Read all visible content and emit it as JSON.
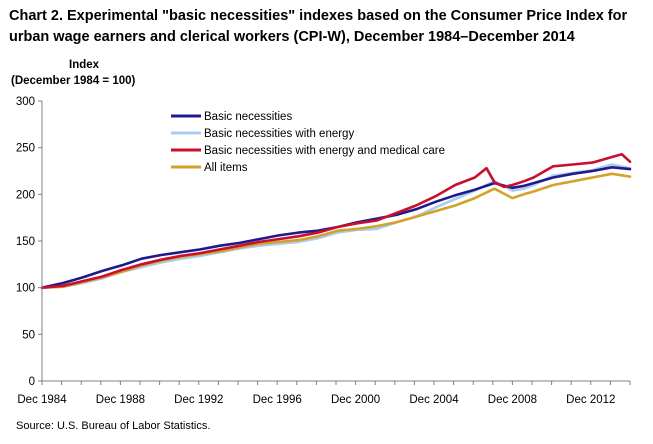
{
  "chart_data": {
    "type": "line",
    "title": "Chart 2. Experimental  \"basic necessities\" indexes based on the Consumer Price Index for urban wage earners and clerical workers (CPI-W), December 1984–December 2014",
    "ylabel_line1": "Index",
    "ylabel_line2": "(December 1984 = 100)",
    "xlabel": "",
    "ylim": [
      0,
      300
    ],
    "yticks": [
      0,
      50,
      100,
      150,
      200,
      250,
      300
    ],
    "xlim": [
      1984.92,
      2014.92
    ],
    "xticks": [
      {
        "label": "Dec 1984",
        "x": 1984.92
      },
      {
        "label": "Dec 1988",
        "x": 1988.92
      },
      {
        "label": "Dec 1992",
        "x": 1992.92
      },
      {
        "label": "Dec 1996",
        "x": 1996.92
      },
      {
        "label": "Dec 2000",
        "x": 2000.92
      },
      {
        "label": "Dec 2004",
        "x": 2004.92
      },
      {
        "label": "Dec 2008",
        "x": 2008.92
      },
      {
        "label": "Dec 2012",
        "x": 2012.92
      }
    ],
    "grid": false,
    "legend_position": "top-left",
    "series": [
      {
        "name": "Basic necessities",
        "color": "#1f1a8c",
        "x": [
          1984.92,
          1986,
          1987,
          1988,
          1989,
          1990,
          1991,
          1992,
          1993,
          1994,
          1995,
          1996,
          1997,
          1998,
          1999,
          2000,
          2001,
          2002,
          2003,
          2004,
          2005,
          2006,
          2007,
          2008,
          2008.92,
          2009.5,
          2010,
          2011,
          2012,
          2013,
          2014,
          2014.92
        ],
        "values": [
          100,
          105,
          111,
          118,
          124,
          131,
          135,
          138,
          141,
          145,
          148,
          152,
          156,
          159,
          161,
          165,
          170,
          174,
          178,
          184,
          192,
          199,
          205,
          212,
          207,
          209,
          212,
          218,
          222,
          225,
          229,
          227
        ]
      },
      {
        "name": "Basic necessities with energy",
        "color": "#a9cdf0",
        "x": [
          1984.92,
          1986,
          1987,
          1988,
          1989,
          1990,
          1991,
          1992,
          1993,
          1994,
          1995,
          1996,
          1997,
          1998,
          1999,
          2000,
          2001,
          2002,
          2003,
          2004,
          2005,
          2006,
          2007,
          2008,
          2008.92,
          2009.5,
          2010,
          2011,
          2012,
          2013,
          2014,
          2014.92
        ],
        "values": [
          100,
          101,
          105,
          110,
          117,
          122,
          127,
          131,
          134,
          138,
          142,
          145,
          147,
          149,
          153,
          159,
          162,
          163,
          170,
          176,
          186,
          195,
          204,
          214,
          204,
          206,
          210,
          220,
          223,
          226,
          232,
          228
        ]
      },
      {
        "name": "Basic necessities with energy and medical care",
        "color": "#c8102e",
        "x": [
          1984.92,
          1986,
          1987,
          1988,
          1989,
          1990,
          1991,
          1992,
          1993,
          1994,
          1995,
          1996,
          1997,
          1998,
          1999,
          2000,
          2001,
          2002,
          2003,
          2004,
          2005,
          2006,
          2007,
          2007.6,
          2008,
          2008.5,
          2008.92,
          2009.5,
          2010,
          2011,
          2012,
          2013,
          2014,
          2014.5,
          2014.92
        ],
        "values": [
          100,
          102,
          107,
          112,
          119,
          125,
          130,
          134,
          137,
          141,
          145,
          149,
          152,
          155,
          159,
          165,
          169,
          172,
          180,
          188,
          198,
          210,
          218,
          228,
          213,
          208,
          210,
          214,
          218,
          230,
          232,
          234,
          240,
          243,
          235
        ]
      },
      {
        "name": "All items",
        "color": "#d4a12a",
        "x": [
          1984.92,
          1986,
          1987,
          1988,
          1989,
          1990,
          1991,
          1992,
          1993,
          1994,
          1995,
          1996,
          1997,
          1998,
          1999,
          2000,
          2001,
          2002,
          2003,
          2004,
          2005,
          2006,
          2007,
          2008,
          2008.92,
          2009.5,
          2010,
          2011,
          2012,
          2013,
          2014,
          2014.92
        ],
        "values": [
          100,
          101,
          106,
          111,
          117,
          124,
          129,
          133,
          136,
          139,
          143,
          147,
          149,
          151,
          155,
          161,
          163,
          166,
          170,
          176,
          182,
          188,
          196,
          206,
          196,
          200,
          203,
          210,
          214,
          218,
          222,
          219
        ]
      }
    ]
  },
  "source": "Source: U.S. Bureau of Labor Statistics."
}
